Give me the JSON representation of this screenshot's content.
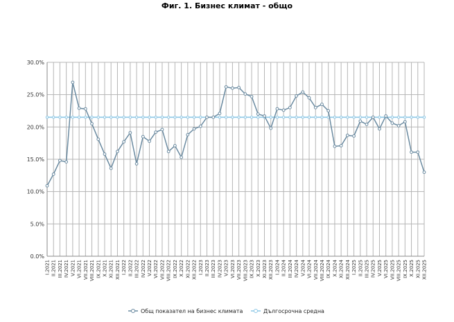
{
  "chart_data": {
    "type": "line",
    "title": "Фиг. 1. Бизнес климат - общо",
    "xlabel": "",
    "ylabel": "",
    "ylim": [
      0,
      30
    ],
    "y_ticks": [
      "0.0%",
      "5.0%",
      "10.0%",
      "15.0%",
      "20.0%",
      "25.0%",
      "30.0%"
    ],
    "y_tick_values": [
      0,
      5,
      10,
      15,
      20,
      25,
      30
    ],
    "grid": true,
    "legend_position": "bottom",
    "categories": [
      "I.2021",
      "II.2021",
      "III.2021",
      "IV.2021",
      "V.2021",
      "VI.2021",
      "VII.2021",
      "VIII.2021",
      "IX.2021",
      "X.2021",
      "XI.2021",
      "XII.2021",
      "I.2022",
      "II.2022",
      "III.2022",
      "IV.2022",
      "V.2022",
      "VI.2022",
      "VII.2022",
      "VIII.2022",
      "IX.2022",
      "X.2022",
      "XI.2022",
      "XII.2022",
      "I.2023",
      "II.2023",
      "III.2023",
      "IV.2023",
      "V.2023",
      "VI.2023",
      "VII.2023",
      "VIII.2023",
      "IX.2023",
      "X.2023",
      "XI.2023",
      "XII.2023",
      "I.2024",
      "II.2024",
      "III.2024",
      "IV.2024",
      "V.2024",
      "VI.2024",
      "VII.2024",
      "VIII.2024",
      "IX.2024",
      "X.2024",
      "XI.2024",
      "XII.2024",
      "I.2025",
      "II.2025",
      "III.2025",
      "IV.2025",
      "V.2025",
      "VI.2025",
      "VII.2025",
      "VIII.2025",
      "IX.2025",
      "X.2025",
      "XI.2025",
      "XII.2025"
    ],
    "series": [
      {
        "name": "Общ показател на бизнес климата",
        "color": "#6a8aa0",
        "values": [
          10.9,
          12.7,
          14.8,
          14.6,
          26.9,
          22.9,
          22.8,
          20.5,
          18.1,
          15.8,
          13.6,
          16.2,
          17.7,
          19.1,
          14.3,
          18.5,
          17.8,
          19.2,
          19.6,
          16.2,
          17.1,
          15.3,
          18.8,
          19.7,
          20.1,
          21.5,
          21.5,
          22.1,
          26.2,
          26.0,
          26.1,
          25.1,
          24.7,
          22.0,
          21.7,
          19.8,
          22.8,
          22.6,
          23.0,
          24.8,
          25.4,
          24.5,
          23.0,
          23.5,
          22.5,
          17.0,
          17.1,
          18.7,
          18.6,
          20.9,
          20.4,
          21.5,
          19.7,
          21.7,
          20.6,
          20.2,
          20.8,
          16.1,
          16.1,
          13.0
        ]
      },
      {
        "name": "Дългосрочна средна",
        "color": "#8ec8e6",
        "values": [
          21.5,
          21.5,
          21.5,
          21.5,
          21.5,
          21.5,
          21.5,
          21.5,
          21.5,
          21.5,
          21.5,
          21.5,
          21.5,
          21.5,
          21.5,
          21.5,
          21.5,
          21.5,
          21.5,
          21.5,
          21.5,
          21.5,
          21.5,
          21.5,
          21.5,
          21.5,
          21.5,
          21.5,
          21.5,
          21.5,
          21.5,
          21.5,
          21.5,
          21.5,
          21.5,
          21.5,
          21.5,
          21.5,
          21.5,
          21.5,
          21.5,
          21.5,
          21.5,
          21.5,
          21.5,
          21.5,
          21.5,
          21.5,
          21.5,
          21.5,
          21.5,
          21.5,
          21.5,
          21.5,
          21.5,
          21.5,
          21.5,
          21.5,
          21.5,
          21.5
        ]
      }
    ]
  }
}
